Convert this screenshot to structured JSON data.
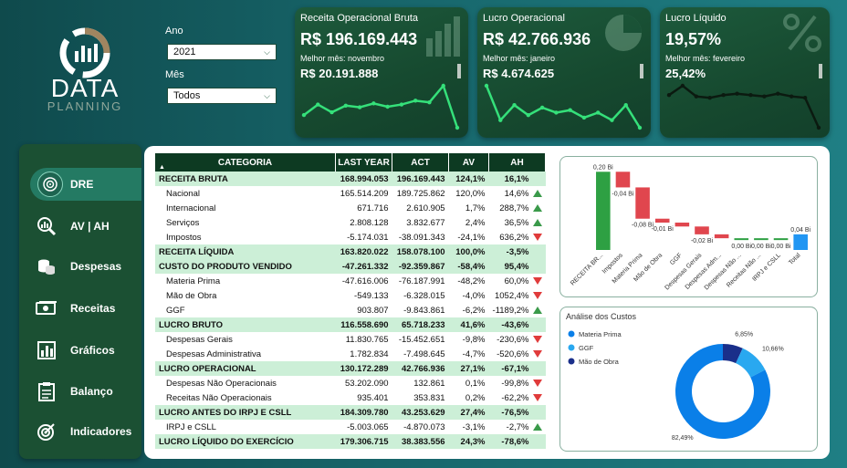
{
  "brand": {
    "name": "DATA",
    "sub": "PLANNING"
  },
  "filters": {
    "ano_label": "Ano",
    "ano_value": "2021",
    "mes_label": "Mês",
    "mes_value": "Todos"
  },
  "kpis": [
    {
      "title": "Receita Operacional Bruta",
      "value": "R$ 196.169.443",
      "best_label": "Melhor mês: novembro",
      "best_value": "R$ 20.191.888",
      "icon": "bar-chart-icon",
      "spark": [
        14.9,
        16.8,
        15.4,
        16.6,
        16.3,
        17.0,
        16.4,
        16.8,
        17.5,
        17.2,
        20.2,
        12.6
      ]
    },
    {
      "title": "Lucro Operacional",
      "value": "R$ 42.766.936",
      "best_label": "Melhor mês: janeiro",
      "best_value": "R$ 4.674.625",
      "icon": "pie-chart-icon",
      "spark": [
        4.67,
        3.3,
        3.9,
        3.5,
        3.8,
        3.6,
        3.7,
        3.4,
        3.6,
        3.3,
        3.9,
        3.0
      ]
    },
    {
      "title": "Lucro Líquido",
      "value": "19,57%",
      "best_label": "Melhor mês: fevereiro",
      "best_value": "25,42%",
      "icon": "percent-icon",
      "spark": [
        22.0,
        25.42,
        21.5,
        21.0,
        22.0,
        22.5,
        22.0,
        21.5,
        22.5,
        21.5,
        21.0,
        10.0
      ]
    }
  ],
  "nav": [
    {
      "label": "DRE",
      "icon": "target-icon",
      "active": true
    },
    {
      "label": "AV | AH",
      "icon": "magnifier-chart-icon",
      "active": false
    },
    {
      "label": "Despesas",
      "icon": "coins-icon",
      "active": false
    },
    {
      "label": "Receitas",
      "icon": "money-icon",
      "active": false
    },
    {
      "label": "Gráficos",
      "icon": "bar-graph-icon",
      "active": false
    },
    {
      "label": "Balanço",
      "icon": "clipboard-icon",
      "active": false
    },
    {
      "label": "Indicadores",
      "icon": "indicator-target-icon",
      "active": false
    }
  ],
  "table": {
    "headers": [
      "CATEGORIA",
      "LAST YEAR",
      "ACT",
      "AV",
      "AH"
    ],
    "rows": [
      {
        "cat": "RECEITA BRUTA",
        "ly": "168.994.053",
        "act": "196.169.443",
        "av": "124,1%",
        "ah": "16,1%",
        "bold": true,
        "trend": "none"
      },
      {
        "cat": "Nacional",
        "ly": "165.514.209",
        "act": "189.725.862",
        "av": "120,0%",
        "ah": "14,6%",
        "bold": false,
        "trend": "up"
      },
      {
        "cat": "Internacional",
        "ly": "671.716",
        "act": "2.610.905",
        "av": "1,7%",
        "ah": "288,7%",
        "bold": false,
        "trend": "up"
      },
      {
        "cat": "Serviços",
        "ly": "2.808.128",
        "act": "3.832.677",
        "av": "2,4%",
        "ah": "36,5%",
        "bold": false,
        "trend": "up"
      },
      {
        "cat": "Impostos",
        "ly": "-5.174.031",
        "act": "-38.091.343",
        "av": "-24,1%",
        "ah": "636,2%",
        "bold": false,
        "trend": "down"
      },
      {
        "cat": "RECEITA LÍQUIDA",
        "ly": "163.820.022",
        "act": "158.078.100",
        "av": "100,0%",
        "ah": "-3,5%",
        "bold": true,
        "trend": "none"
      },
      {
        "cat": "CUSTO DO PRODUTO VENDIDO",
        "ly": "-47.261.332",
        "act": "-92.359.867",
        "av": "-58,4%",
        "ah": "95,4%",
        "bold": true,
        "trend": "none"
      },
      {
        "cat": "Materia Prima",
        "ly": "-47.616.006",
        "act": "-76.187.991",
        "av": "-48,2%",
        "ah": "60,0%",
        "bold": false,
        "trend": "down"
      },
      {
        "cat": "Mão de Obra",
        "ly": "-549.133",
        "act": "-6.328.015",
        "av": "-4,0%",
        "ah": "1052,4%",
        "bold": false,
        "trend": "down"
      },
      {
        "cat": "GGF",
        "ly": "903.807",
        "act": "-9.843.861",
        "av": "-6,2%",
        "ah": "-1189,2%",
        "bold": false,
        "trend": "up"
      },
      {
        "cat": "LUCRO BRUTO",
        "ly": "116.558.690",
        "act": "65.718.233",
        "av": "41,6%",
        "ah": "-43,6%",
        "bold": true,
        "trend": "none"
      },
      {
        "cat": "Despesas Gerais",
        "ly": "11.830.765",
        "act": "-15.452.651",
        "av": "-9,8%",
        "ah": "-230,6%",
        "bold": false,
        "trend": "down"
      },
      {
        "cat": "Despesas Administrativa",
        "ly": "1.782.834",
        "act": "-7.498.645",
        "av": "-4,7%",
        "ah": "-520,6%",
        "bold": false,
        "trend": "down"
      },
      {
        "cat": "LUCRO OPERACIONAL",
        "ly": "130.172.289",
        "act": "42.766.936",
        "av": "27,1%",
        "ah": "-67,1%",
        "bold": true,
        "trend": "none"
      },
      {
        "cat": "Despesas Não Operacionais",
        "ly": "53.202.090",
        "act": "132.861",
        "av": "0,1%",
        "ah": "-99,8%",
        "bold": false,
        "trend": "down"
      },
      {
        "cat": "Receitas Não Operacionais",
        "ly": "935.401",
        "act": "353.831",
        "av": "0,2%",
        "ah": "-62,2%",
        "bold": false,
        "trend": "down"
      },
      {
        "cat": "LUCRO ANTES DO IRPJ E CSLL",
        "ly": "184.309.780",
        "act": "43.253.629",
        "av": "27,4%",
        "ah": "-76,5%",
        "bold": true,
        "trend": "none"
      },
      {
        "cat": "IRPJ e CSLL",
        "ly": "-5.003.065",
        "act": "-4.870.073",
        "av": "-3,1%",
        "ah": "-2,7%",
        "bold": false,
        "trend": "up"
      },
      {
        "cat": "LUCRO LÍQUIDO DO EXERCÍCIO",
        "ly": "179.306.715",
        "act": "38.383.556",
        "av": "24,3%",
        "ah": "-78,6%",
        "bold": true,
        "trend": "none"
      }
    ]
  },
  "chart_data": [
    {
      "type": "bar",
      "subtype": "waterfall",
      "categories": [
        "RECEITA BR...",
        "Impostos",
        "Materia Prima",
        "Mão de Obra",
        "GGF",
        "Despesas Gerais",
        "Despesas Adm...",
        "Despesas Não ...",
        "Receitas Não ...",
        "IRPJ e CSLL",
        "Total"
      ],
      "values": [
        0.2,
        -0.04,
        -0.08,
        -0.01,
        -0.01,
        -0.02,
        -0.01,
        0.0,
        0.0,
        0.0,
        0.04
      ],
      "value_labels": [
        "0,20 Bi",
        "-0,04 Bi",
        "-0,08 Bi",
        "-0,01 Bi",
        "",
        "-0,02 Bi",
        "",
        "0,00 Bi",
        "0,00 Bi",
        "0,00 Bi",
        "0,04 Bi"
      ],
      "colors": {
        "increase": "#2ea043",
        "decrease": "#e0464e",
        "total": "#2196f3"
      }
    },
    {
      "type": "pie",
      "subtype": "donut",
      "title": "Análise dos Custos",
      "labels": [
        "Materia Prima",
        "GGF",
        "Mão de Obra"
      ],
      "values": [
        82.49,
        10.66,
        6.85
      ],
      "value_labels": [
        "82,49%",
        "10,66%",
        "6,85%"
      ],
      "colors": [
        "#0a7fe8",
        "#29a8f0",
        "#1a2f8a"
      ],
      "legend": "top-left"
    }
  ]
}
